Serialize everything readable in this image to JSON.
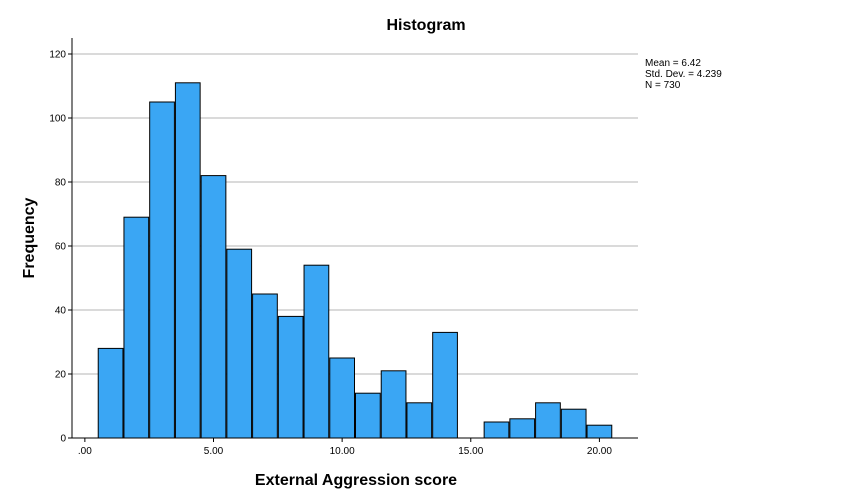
{
  "chart_data": {
    "type": "bar",
    "title": "Histogram",
    "xlabel": "External Aggression score",
    "ylabel": "Frequency",
    "bar_color": "#3aa6f4",
    "bar_edge_color": "#000000",
    "xlim": [
      -0.5,
      21.5
    ],
    "ylim": [
      0,
      125
    ],
    "xticks": [
      0,
      5,
      10,
      15,
      20
    ],
    "xtick_labels": [
      ".00",
      "5.00",
      "10.00",
      "15.00",
      "20.00"
    ],
    "yticks": [
      0,
      20,
      40,
      60,
      80,
      100,
      120
    ],
    "ytick_labels": [
      "0",
      "20",
      "40",
      "60",
      "80",
      "100",
      "120"
    ],
    "grid": "horizontal",
    "bins": [
      {
        "x0": 0.5,
        "x1": 1.5,
        "value": 28
      },
      {
        "x0": 1.5,
        "x1": 2.5,
        "value": 69
      },
      {
        "x0": 2.5,
        "x1": 3.5,
        "value": 105
      },
      {
        "x0": 3.5,
        "x1": 4.5,
        "value": 111
      },
      {
        "x0": 4.5,
        "x1": 5.5,
        "value": 82
      },
      {
        "x0": 5.5,
        "x1": 6.5,
        "value": 59
      },
      {
        "x0": 6.5,
        "x1": 7.5,
        "value": 45
      },
      {
        "x0": 7.5,
        "x1": 8.5,
        "value": 38
      },
      {
        "x0": 8.5,
        "x1": 9.5,
        "value": 54
      },
      {
        "x0": 9.5,
        "x1": 10.5,
        "value": 25
      },
      {
        "x0": 10.5,
        "x1": 11.5,
        "value": 14
      },
      {
        "x0": 11.5,
        "x1": 12.5,
        "value": 21
      },
      {
        "x0": 12.5,
        "x1": 13.5,
        "value": 11
      },
      {
        "x0": 13.5,
        "x1": 14.5,
        "value": 33
      },
      {
        "x0": 15.5,
        "x1": 16.5,
        "value": 5
      },
      {
        "x0": 16.5,
        "x1": 17.5,
        "value": 6
      },
      {
        "x0": 17.5,
        "x1": 18.5,
        "value": 11
      },
      {
        "x0": 18.5,
        "x1": 19.5,
        "value": 9
      },
      {
        "x0": 19.5,
        "x1": 20.5,
        "value": 4
      }
    ],
    "stats": {
      "mean": "Mean = 6.42",
      "std": "Std. Dev. = 4.239",
      "n": "N = 730"
    }
  }
}
